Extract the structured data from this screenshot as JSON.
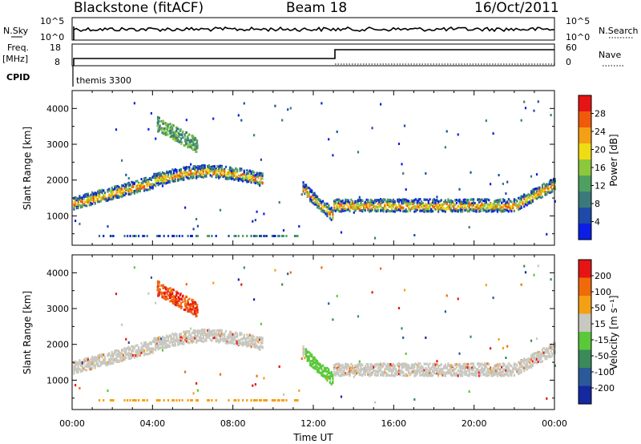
{
  "header": {
    "radar": "Blackstone (fitACF)",
    "beam": "Beam 18",
    "date": "16/Oct/2011"
  },
  "top_panels": {
    "nsky_label": "N.Sky",
    "nsearch_label": "N.Search",
    "nsky_ticks": [
      "10^5",
      "10^0"
    ],
    "nsearch_ticks": [
      "10^5",
      "10^0"
    ],
    "freq_label": "Freq.",
    "freq_unit": "[MHz]",
    "freq_ticks": [
      "18",
      "8"
    ],
    "nave_label": "Nave",
    "nave_ticks": [
      "60",
      "0"
    ],
    "cpid_label": "CPID",
    "cpid_value": "themis 3300"
  },
  "chart_data": [
    {
      "type": "heatmap",
      "name": "power",
      "ylabel": "Slant Range [km]",
      "yticks": [
        "1000",
        "2000",
        "3000",
        "4000"
      ],
      "ylim": [
        180,
        4500
      ],
      "xlim": [
        0,
        24
      ],
      "colorbar_label": "Power [dB]",
      "colorbar_ticks": [
        "4",
        "8",
        "12",
        "16",
        "20",
        "24",
        "28"
      ],
      "colorbar_colors": [
        "#0a1ee6",
        "#1e4aaa",
        "#3a7a7a",
        "#4ea060",
        "#8cc83c",
        "#f0dc14",
        "#f5a014",
        "#f05a0a",
        "#e61414"
      ]
    },
    {
      "type": "heatmap",
      "name": "velocity",
      "ylabel": "Slant Range [km]",
      "yticks": [
        "1000",
        "2000",
        "3000",
        "4000"
      ],
      "ylim": [
        180,
        4500
      ],
      "xlim": [
        0,
        24
      ],
      "colorbar_label": "Velocity [m s⁻¹]",
      "colorbar_ticks": [
        "200",
        "100",
        "50",
        "15",
        "-15",
        "-50",
        "-100",
        "-200"
      ],
      "colorbar_colors": [
        "#1428a0",
        "#2a5a9a",
        "#3a8a5a",
        "#5ac83a",
        "#c8c8c0",
        "#f5a014",
        "#f06a0a",
        "#e61414"
      ]
    }
  ],
  "xaxis": {
    "ticks": [
      "00:00",
      "04:00",
      "08:00",
      "12:00",
      "16:00",
      "20:00",
      "00:00"
    ],
    "label": "Time UT"
  }
}
